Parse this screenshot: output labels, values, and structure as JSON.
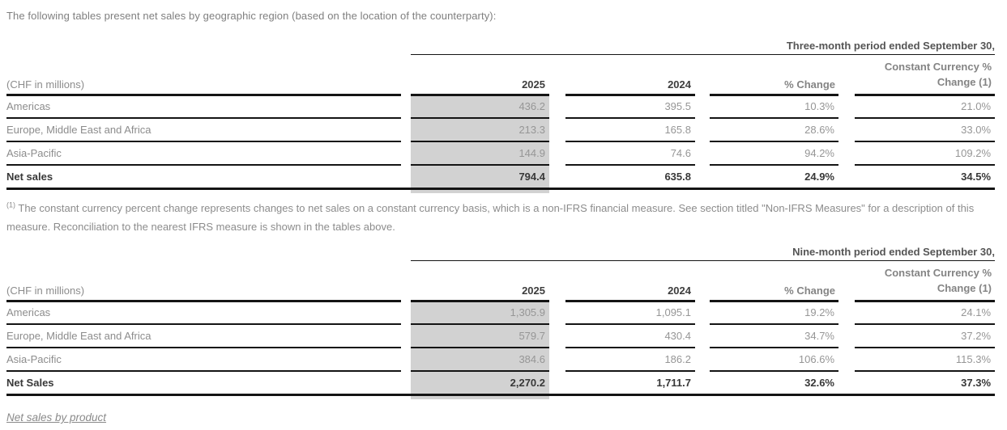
{
  "page": {
    "intro": "The following tables present net sales by geographic region (based on the location of the counterparty):",
    "section_heading": "Net sales by product"
  },
  "footnote": {
    "marker": "(1)",
    "text": " The constant currency percent change represents changes to net sales on a constant currency basis, which is a non-IFRS financial measure. See section titled \"Non-IFRS Measures\" for a description of this measure. Reconciliation to the nearest IFRS measure is shown in the tables above."
  },
  "colors": {
    "shaded_column": "#d2d2d2",
    "rule": "#141414",
    "body_text_gray": "#8c8c8c",
    "bold_text_dark": "#383838"
  },
  "tables": [
    {
      "period_header": "Three-month period ended September 30,",
      "unit_label": "(CHF in millions)",
      "columns": [
        "2025",
        "2024",
        "% Change",
        "Constant Currency %\nChange (1)"
      ],
      "rows": [
        {
          "label": "Americas",
          "values": [
            "436.2",
            "395.5",
            "10.3%",
            "21.0%"
          ]
        },
        {
          "label": "Europe, Middle East and Africa",
          "values": [
            "213.3",
            "165.8",
            "28.6%",
            "33.0%"
          ]
        },
        {
          "label": "Asia-Pacific",
          "values": [
            "144.9",
            "74.6",
            "94.2%",
            "109.2%"
          ]
        },
        {
          "label": "Net sales",
          "values": [
            "794.4",
            "635.8",
            "24.9%",
            "34.5%"
          ]
        }
      ]
    },
    {
      "period_header": "Nine-month period ended September 30,",
      "unit_label": "(CHF in millions)",
      "columns": [
        "2025",
        "2024",
        "% Change",
        "Constant Currency %\nChange (1)"
      ],
      "rows": [
        {
          "label": "Americas",
          "values": [
            "1,305.9",
            "1,095.1",
            "19.2%",
            "24.1%"
          ]
        },
        {
          "label": "Europe, Middle East and Africa",
          "values": [
            "579.7",
            "430.4",
            "34.7%",
            "37.2%"
          ]
        },
        {
          "label": "Asia-Pacific",
          "values": [
            "384.6",
            "186.2",
            "106.6%",
            "115.3%"
          ]
        },
        {
          "label": "Net Sales",
          "values": [
            "2,270.2",
            "1,711.7",
            "32.6%",
            "37.3%"
          ]
        }
      ]
    }
  ]
}
